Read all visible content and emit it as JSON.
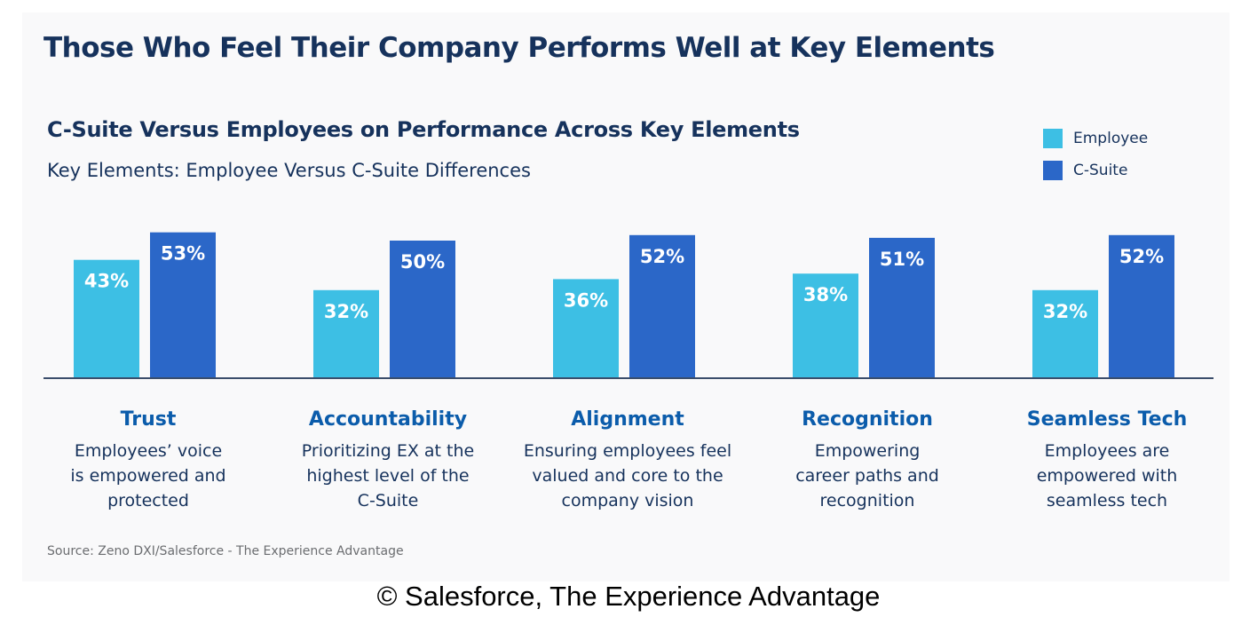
{
  "header": {
    "title": "Those Who Feel Their Company Performs Well at Key Elements"
  },
  "legend": {
    "items": [
      {
        "label": "Employee",
        "color": "#3dbfe4"
      },
      {
        "label": "C-Suite",
        "color": "#2b67c8"
      }
    ]
  },
  "chart_data": {
    "type": "bar",
    "title": "C-Suite Versus Employees on Performance Across Key Elements",
    "subtitle": "Key Elements: Employee Versus C-Suite Differences",
    "categories": [
      "Trust",
      "Accountability",
      "Alignment",
      "Recognition",
      "Seamless Tech"
    ],
    "descriptions": [
      [
        "Employees’ voice",
        "is empowered and",
        "protected"
      ],
      [
        "Prioritizing EX at the",
        "highest level of the",
        "C-Suite"
      ],
      [
        "Ensuring employees feel",
        "valued and core to the",
        "company vision"
      ],
      [
        "Empowering",
        "career paths and",
        "recognition"
      ],
      [
        "Employees are",
        "empowered with",
        "seamless tech"
      ]
    ],
    "series": [
      {
        "name": "Employee",
        "values": [
          43,
          32,
          36,
          38,
          32
        ],
        "color": "#3dbfe4"
      },
      {
        "name": "C-Suite",
        "values": [
          53,
          50,
          52,
          51,
          52
        ],
        "color": "#2b67c8"
      }
    ],
    "value_suffix": "%",
    "ylim": [
      0,
      100
    ],
    "legend_position": "top-right",
    "grid": false
  },
  "footer": {
    "source": "Source: Zeno DXI/Salesforce - The Experience Advantage",
    "copyright": "© Salesforce, The Experience Advantage"
  }
}
